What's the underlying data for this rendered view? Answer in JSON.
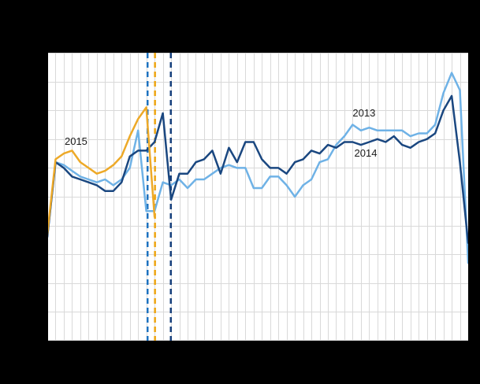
{
  "page": {
    "background_color": "#000000",
    "plot_background_color": "#ffffff",
    "gridline_color": "#d9d9d9",
    "axis_line_color": "#000000",
    "label_color": "#1a1a1a"
  },
  "chart_data": {
    "type": "line",
    "x_unit": "week",
    "xlim": [
      1,
      52
    ],
    "ylim": [
      0,
      100
    ],
    "grid": true,
    "axis_tick_labels_visible": false,
    "legend": "inline year labels",
    "series": [
      {
        "name": "2013",
        "color": "#6FB2E6",
        "start_week": 1,
        "values": [
          36,
          62,
          61,
          59,
          57,
          56,
          55,
          56,
          54,
          56,
          60,
          73,
          45,
          45,
          55,
          54,
          56,
          53,
          56,
          56,
          58,
          60,
          61,
          60,
          60,
          53,
          53,
          57,
          57,
          54,
          50,
          54,
          56,
          62,
          63,
          68,
          71,
          75,
          73,
          74,
          73,
          73,
          73,
          73,
          71,
          72,
          72,
          75,
          86,
          93,
          87,
          27
        ]
      },
      {
        "name": "2014",
        "color": "#1A4780",
        "start_week": 1,
        "values": [
          36,
          62,
          60,
          57,
          56,
          55,
          54,
          52,
          52,
          55,
          64,
          66,
          66,
          69,
          79,
          49,
          58,
          58,
          62,
          63,
          66,
          58,
          67,
          62,
          69,
          69,
          63,
          60,
          60,
          58,
          62,
          63,
          66,
          65,
          68,
          67,
          69,
          69,
          68,
          69,
          70,
          69,
          71,
          68,
          67,
          69,
          70,
          72,
          80,
          85,
          62,
          34
        ]
      },
      {
        "name": "2015",
        "color": "#EDA928",
        "start_week": 1,
        "values": [
          37,
          63,
          65,
          66,
          62,
          60,
          58,
          59,
          61,
          64,
          71,
          77,
          81,
          43
        ]
      }
    ],
    "event_markers": [
      {
        "series": "2013",
        "week": 13.15,
        "color": "#1D72BF",
        "style": "dashed-vertical"
      },
      {
        "series": "2015",
        "week": 14.05,
        "color": "#EDA411",
        "style": "dashed-vertical"
      },
      {
        "series": "2014",
        "week": 15.97,
        "color": "#163F7C",
        "style": "dashed-vertical"
      }
    ],
    "annotations": [
      {
        "text": "2015",
        "x_week": 3.1,
        "y_value": 69
      },
      {
        "text": "2013",
        "x_week": 38.0,
        "y_value": 79
      },
      {
        "text": "2014",
        "x_week": 38.2,
        "y_value": 65
      }
    ]
  }
}
